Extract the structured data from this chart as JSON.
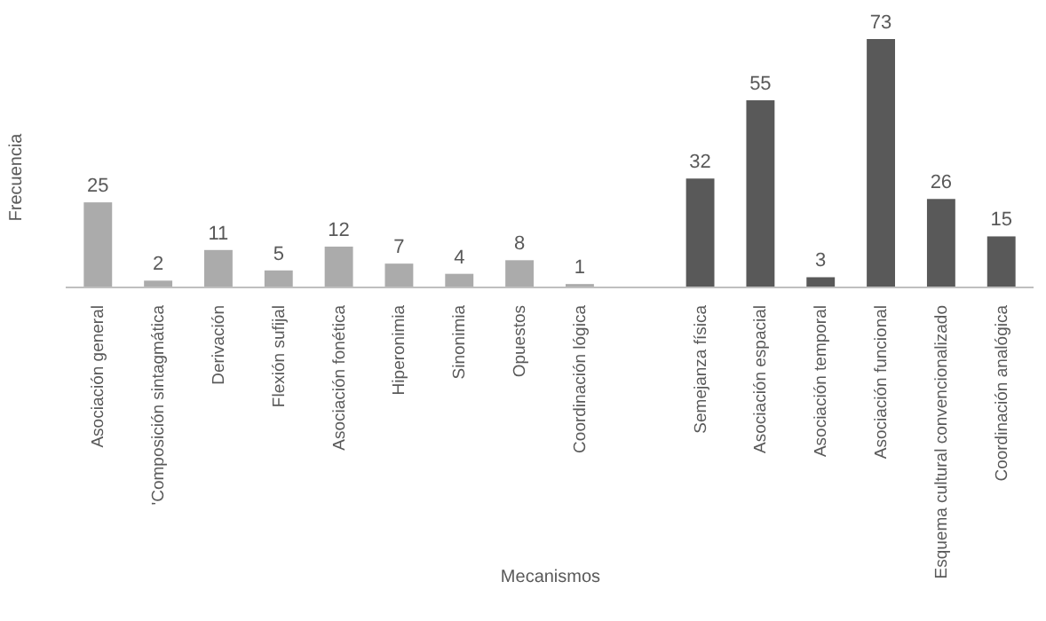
{
  "chart_data": {
    "type": "bar",
    "xlabel": "Mecanismos",
    "ylabel": "Frecuencia",
    "categories": [
      "Asociación general",
      "'Composición sintagmática",
      "Derivación",
      "Flexión sufijal",
      "Asociación fonética",
      "Hiperonimia",
      "Sinonimia",
      "Opuestos",
      "Coordinación lógica",
      null,
      "Semejanza física",
      "Asociación espacial",
      "Asociación temporal",
      "Asociación funcional",
      "Esquema cultural convencionalizado",
      "Coordinación analógica"
    ],
    "values": [
      25,
      2,
      11,
      5,
      12,
      7,
      4,
      8,
      1,
      null,
      32,
      55,
      3,
      73,
      26,
      15
    ],
    "colors": [
      "#ababab",
      "#ababab",
      "#ababab",
      "#ababab",
      "#ababab",
      "#ababab",
      "#ababab",
      "#ababab",
      "#ababab",
      null,
      "#595959",
      "#595959",
      "#595959",
      "#595959",
      "#595959",
      "#595959"
    ],
    "data_labels": true
  }
}
